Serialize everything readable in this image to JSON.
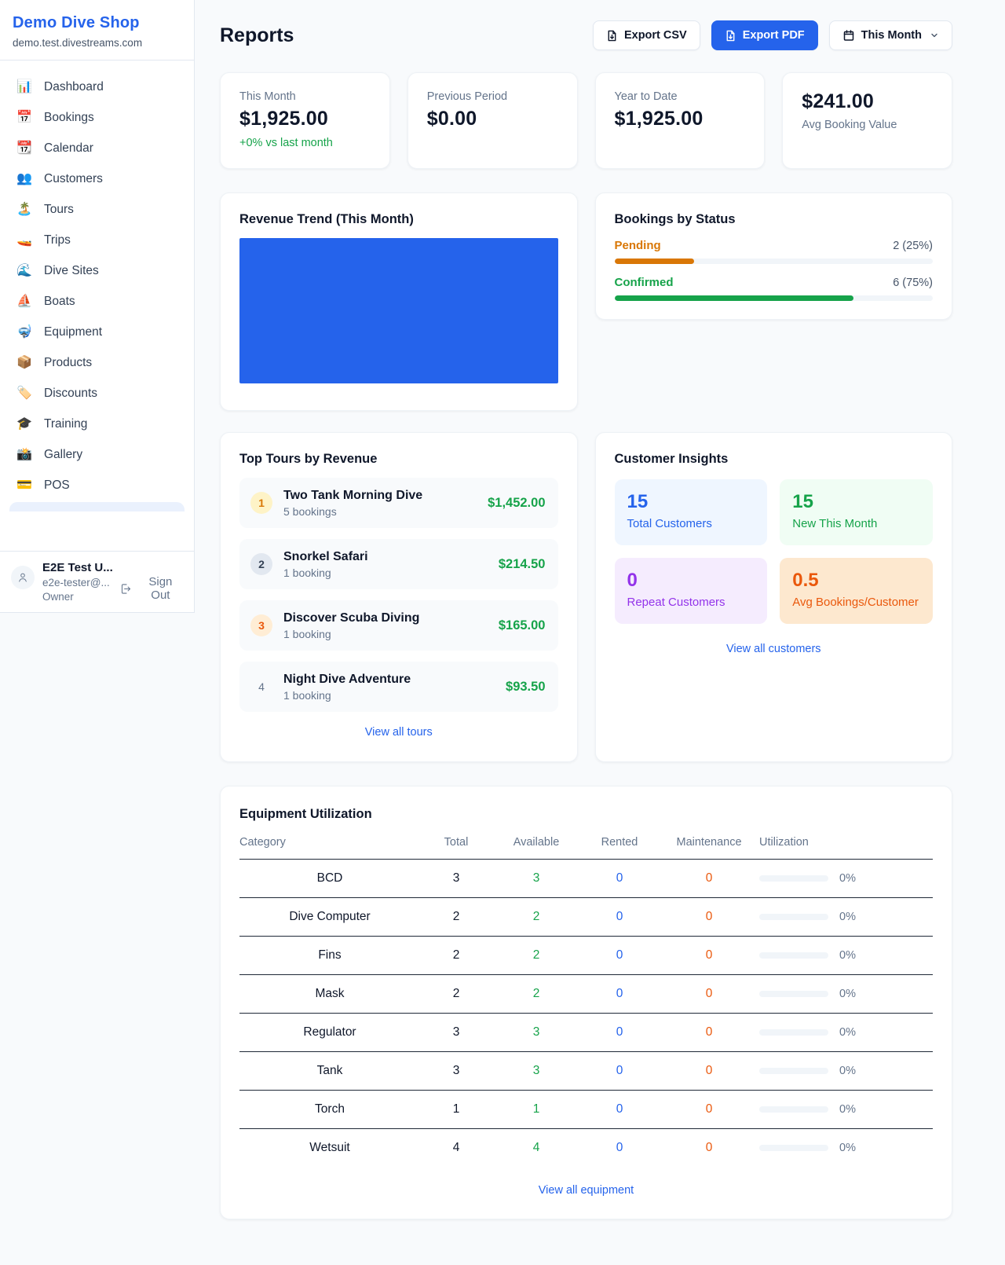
{
  "app": {
    "name": "Demo Dive Shop",
    "domain": "demo.test.divestreams.com"
  },
  "sidebar": {
    "items": [
      {
        "icon": "📊",
        "label": "Dashboard"
      },
      {
        "icon": "📅",
        "label": "Bookings"
      },
      {
        "icon": "📆",
        "label": "Calendar"
      },
      {
        "icon": "👥",
        "label": "Customers"
      },
      {
        "icon": "🏝️",
        "label": "Tours"
      },
      {
        "icon": "🚤",
        "label": "Trips"
      },
      {
        "icon": "🌊",
        "label": "Dive Sites"
      },
      {
        "icon": "⛵",
        "label": "Boats"
      },
      {
        "icon": "🤿",
        "label": "Equipment"
      },
      {
        "icon": "📦",
        "label": "Products"
      },
      {
        "icon": "🏷️",
        "label": "Discounts"
      },
      {
        "icon": "🎓",
        "label": "Training"
      },
      {
        "icon": "📸",
        "label": "Gallery"
      },
      {
        "icon": "💳",
        "label": "POS"
      }
    ]
  },
  "user": {
    "name": "E2E Test U...",
    "email": "e2e-tester@...",
    "role": "Owner",
    "sign_out_label": "Sign Out"
  },
  "header": {
    "title": "Reports",
    "export_csv_label": "Export CSV",
    "export_pdf_label": "Export PDF",
    "period_label": "This Month"
  },
  "stats": [
    {
      "label": "This Month",
      "value": "$1,925.00",
      "sub": "+0% vs last month"
    },
    {
      "label": "Previous Period",
      "value": "$0.00"
    },
    {
      "label": "Year to Date",
      "value": "$1,925.00"
    },
    {
      "label": "Avg Booking Value",
      "value": "$241.00"
    }
  ],
  "revenue_trend": {
    "title": "Revenue Trend (This Month)",
    "bar_color": "#2563eb"
  },
  "bookings_by_status": {
    "title": "Bookings by Status",
    "rows": [
      {
        "label": "Pending",
        "count_text": "2 (25%)",
        "percent": 25,
        "color": "#d97706"
      },
      {
        "label": "Confirmed",
        "count_text": "6 (75%)",
        "percent": 75,
        "color": "#16a34a"
      }
    ]
  },
  "top_tours": {
    "title": "Top Tours by Revenue",
    "rows": [
      {
        "rank": "1",
        "name": "Two Tank Morning Dive",
        "bookings": "5 bookings",
        "amount": "$1,452.00"
      },
      {
        "rank": "2",
        "name": "Snorkel Safari",
        "bookings": "1 booking",
        "amount": "$214.50"
      },
      {
        "rank": "3",
        "name": "Discover Scuba Diving",
        "bookings": "1 booking",
        "amount": "$165.00"
      },
      {
        "rank": "4",
        "name": "Night Dive Adventure",
        "bookings": "1 booking",
        "amount": "$93.50"
      }
    ],
    "view_all": "View all tours"
  },
  "customer_insights": {
    "title": "Customer Insights",
    "tiles": [
      {
        "value": "15",
        "label": "Total Customers",
        "color": "#2563eb"
      },
      {
        "value": "15",
        "label": "New This Month",
        "color": "#16a34a"
      },
      {
        "value": "0",
        "label": "Repeat Customers",
        "color": "#9333ea"
      },
      {
        "value": "0.5",
        "label": "Avg Bookings/Customer",
        "color": "#ea580c"
      }
    ],
    "view_all": "View all customers"
  },
  "equipment": {
    "title": "Equipment Utilization",
    "columns": [
      "Category",
      "Total",
      "Available",
      "Rented",
      "Maintenance",
      "Utilization"
    ],
    "rows": [
      {
        "category": "BCD",
        "total": "3",
        "available": "3",
        "rented": "0",
        "maintenance": "0",
        "utilization_pct": 0,
        "utilization_text": "0%"
      },
      {
        "category": "Dive Computer",
        "total": "2",
        "available": "2",
        "rented": "0",
        "maintenance": "0",
        "utilization_pct": 0,
        "utilization_text": "0%"
      },
      {
        "category": "Fins",
        "total": "2",
        "available": "2",
        "rented": "0",
        "maintenance": "0",
        "utilization_pct": 0,
        "utilization_text": "0%"
      },
      {
        "category": "Mask",
        "total": "2",
        "available": "2",
        "rented": "0",
        "maintenance": "0",
        "utilization_pct": 0,
        "utilization_text": "0%"
      },
      {
        "category": "Regulator",
        "total": "3",
        "available": "3",
        "rented": "0",
        "maintenance": "0",
        "utilization_pct": 0,
        "utilization_text": "0%"
      },
      {
        "category": "Tank",
        "total": "3",
        "available": "3",
        "rented": "0",
        "maintenance": "0",
        "utilization_pct": 0,
        "utilization_text": "0%"
      },
      {
        "category": "Torch",
        "total": "1",
        "available": "1",
        "rented": "0",
        "maintenance": "0",
        "utilization_pct": 0,
        "utilization_text": "0%"
      },
      {
        "category": "Wetsuit",
        "total": "4",
        "available": "4",
        "rented": "0",
        "maintenance": "0",
        "utilization_pct": 0,
        "utilization_text": "0%"
      }
    ],
    "view_all": "View all equipment"
  },
  "colors": {
    "accent": "#2563eb",
    "green": "#16a34a",
    "amber": "#d97706",
    "orange": "#ea580c",
    "purple": "#9333ea"
  }
}
